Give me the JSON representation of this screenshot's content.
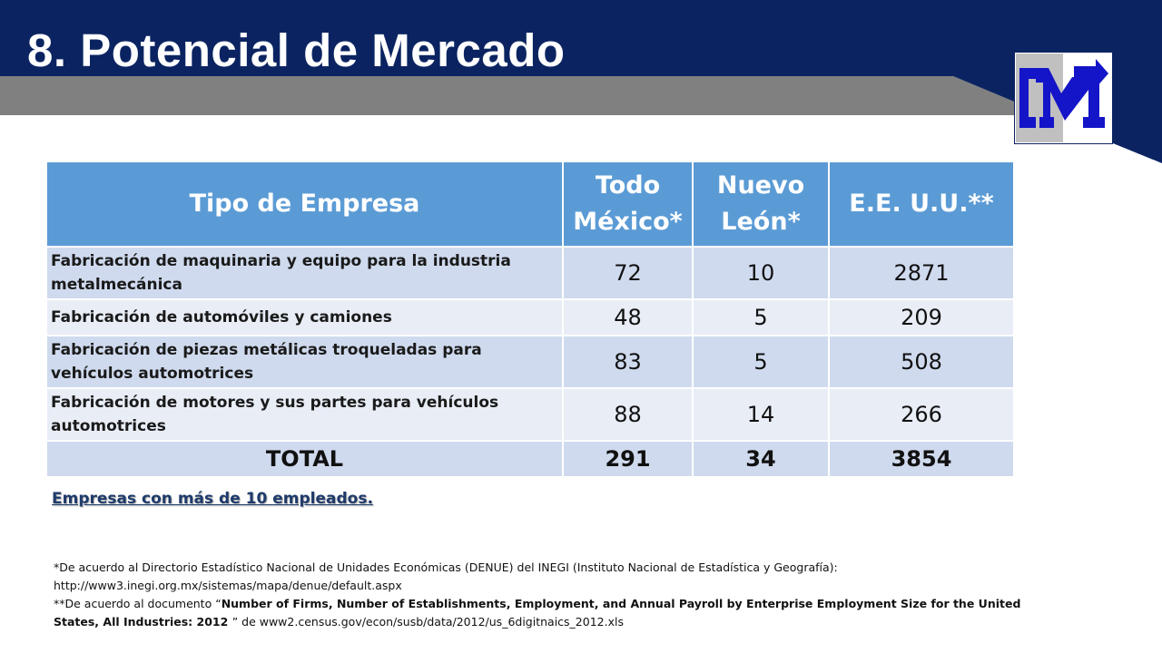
{
  "slide": {
    "title": "8. Potencial de Mercado",
    "colors": {
      "navy": "#0b2461",
      "gray_band": "#808080",
      "header_blue": "#5b9bd5",
      "row_dark": "#cfdaee",
      "row_light": "#e8edf6"
    }
  },
  "logo": {
    "icon": "company-logo-icon"
  },
  "table": {
    "headers": {
      "type": "Tipo de Empresa",
      "mexico": "Todo México*",
      "nuevo_leon": "Nuevo León*",
      "usa": "E.E. U.U.**"
    },
    "rows": [
      {
        "type": "Fabricación de maquinaria y equipo para la industria metalmecánica",
        "mexico": "72",
        "nuevo_leon": "10",
        "usa": "2871"
      },
      {
        "type": "Fabricación de automóviles y camiones",
        "mexico": "48",
        "nuevo_leon": "5",
        "usa": "209"
      },
      {
        "type": "Fabricación de piezas metálicas troqueladas para vehículos automotrices",
        "mexico": "83",
        "nuevo_leon": "5",
        "usa": "508"
      },
      {
        "type": "Fabricación de motores y sus partes para vehículos automotrices",
        "mexico": "88",
        "nuevo_leon": "14",
        "usa": "266"
      }
    ],
    "total": {
      "label": "TOTAL",
      "mexico": "291",
      "nuevo_leon": "34",
      "usa": "3854"
    }
  },
  "note": "Empresas con más de 10 empleados.",
  "footnotes": {
    "inegi": "*De acuerdo al Directorio Estadístico Nacional de Unidades Económicas (DENUE) del INEGI (Instituto Nacional de Estadística y Geografía):",
    "inegi_url": "http://www3.inegi.org.mx/sistemas/mapa/denue/default.aspx",
    "census_prefix": "**De acuerdo al  documento “",
    "census_title": "Number of Firms, Number of Establishments, Employment, and Annual Payroll by Enterprise Employment Size for the United States, All Industries:  2012 ",
    "census_suffix": "” de  www2.census.gov/econ/susb/data/2012/us_6digitnaics_2012.xls"
  }
}
